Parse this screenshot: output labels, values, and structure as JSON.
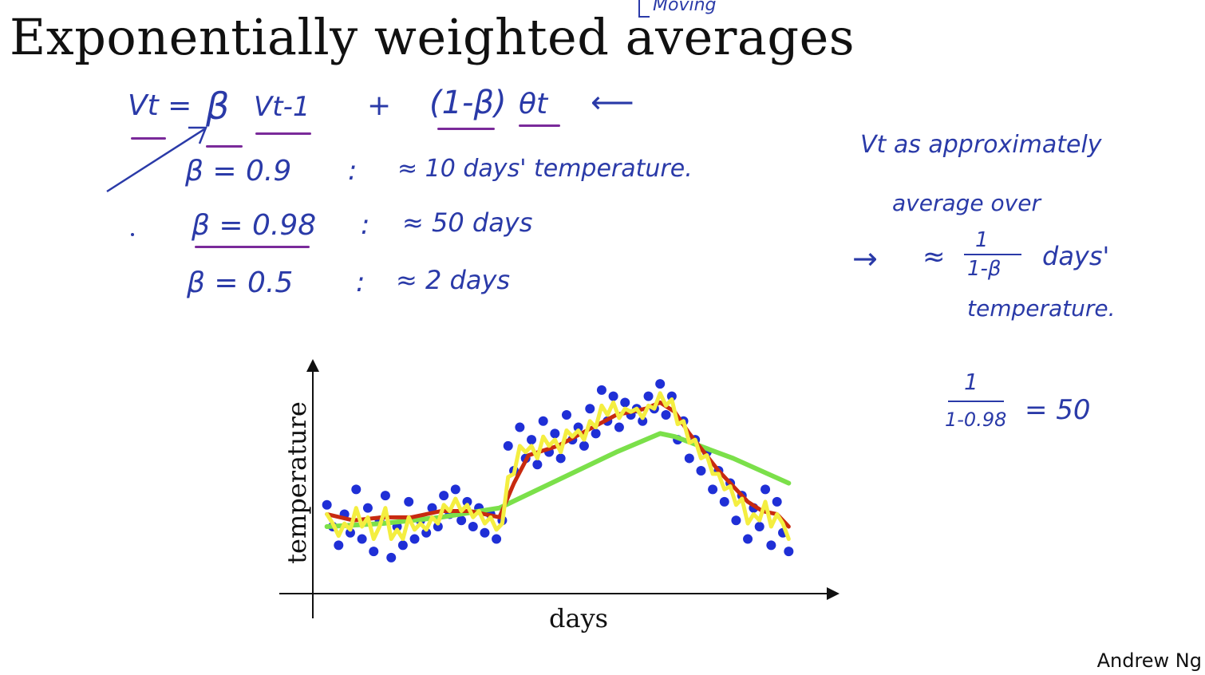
{
  "slide": {
    "title": "Exponentially weighted averages",
    "annotation": "Moving",
    "author": "Andrew Ng"
  },
  "formula": {
    "lhs": "Vt =",
    "beta": "β",
    "v_prev": "Vt-1",
    "plus": "+",
    "one_minus_beta": "(1-β)",
    "theta": "θt",
    "arrow": "⟵"
  },
  "examples": [
    {
      "beta": "β = 0.9",
      "sep": ":",
      "result": "≈ 10 days' temperature."
    },
    {
      "beta": "β = 0.98",
      "sep": ":",
      "result": "≈ 50 days"
    },
    {
      "beta": "β = 0.5",
      "sep": ":",
      "result": "≈ 2 days"
    }
  ],
  "note": {
    "line1": "Vt as approximately",
    "line2": "average over",
    "arrow": "→",
    "approx": "≈",
    "frac_num": "1",
    "frac_den": "1-β",
    "days": "days'",
    "line4": "temperature."
  },
  "calc": {
    "num": "1",
    "den": "1-0.98",
    "result": "= 50"
  },
  "chart_data": {
    "type": "scatter",
    "xlabel": "days",
    "ylabel": "temperature",
    "raw_points": [
      [
        1,
        25
      ],
      [
        3,
        18
      ],
      [
        5,
        12
      ],
      [
        7,
        22
      ],
      [
        9,
        16
      ],
      [
        11,
        30
      ],
      [
        13,
        14
      ],
      [
        15,
        24
      ],
      [
        17,
        10
      ],
      [
        19,
        20
      ],
      [
        21,
        28
      ],
      [
        23,
        8
      ],
      [
        25,
        18
      ],
      [
        27,
        12
      ],
      [
        29,
        26
      ],
      [
        31,
        14
      ],
      [
        33,
        20
      ],
      [
        35,
        16
      ],
      [
        37,
        24
      ],
      [
        39,
        18
      ],
      [
        41,
        28
      ],
      [
        43,
        22
      ],
      [
        45,
        30
      ],
      [
        47,
        20
      ],
      [
        49,
        26
      ],
      [
        51,
        18
      ],
      [
        53,
        24
      ],
      [
        55,
        16
      ],
      [
        57,
        22
      ],
      [
        59,
        14
      ],
      [
        61,
        20
      ],
      [
        63,
        44
      ],
      [
        65,
        36
      ],
      [
        67,
        50
      ],
      [
        69,
        40
      ],
      [
        71,
        46
      ],
      [
        73,
        38
      ],
      [
        75,
        52
      ],
      [
        77,
        42
      ],
      [
        79,
        48
      ],
      [
        81,
        40
      ],
      [
        83,
        54
      ],
      [
        85,
        46
      ],
      [
        87,
        50
      ],
      [
        89,
        44
      ],
      [
        91,
        56
      ],
      [
        93,
        48
      ],
      [
        95,
        62
      ],
      [
        97,
        52
      ],
      [
        99,
        60
      ],
      [
        101,
        50
      ],
      [
        103,
        58
      ],
      [
        105,
        54
      ],
      [
        107,
        56
      ],
      [
        109,
        52
      ],
      [
        111,
        60
      ],
      [
        113,
        56
      ],
      [
        115,
        64
      ],
      [
        117,
        54
      ],
      [
        119,
        60
      ],
      [
        121,
        46
      ],
      [
        123,
        52
      ],
      [
        125,
        40
      ],
      [
        127,
        46
      ],
      [
        129,
        36
      ],
      [
        131,
        42
      ],
      [
        133,
        30
      ],
      [
        135,
        36
      ],
      [
        137,
        26
      ],
      [
        139,
        32
      ],
      [
        141,
        20
      ],
      [
        143,
        28
      ],
      [
        145,
        14
      ],
      [
        147,
        24
      ],
      [
        149,
        18
      ],
      [
        151,
        30
      ],
      [
        153,
        12
      ],
      [
        155,
        26
      ],
      [
        157,
        16
      ],
      [
        159,
        10
      ]
    ],
    "ewa_beta_0_9": [
      [
        1,
        22
      ],
      [
        10,
        20
      ],
      [
        20,
        21
      ],
      [
        30,
        21
      ],
      [
        40,
        23
      ],
      [
        50,
        23
      ],
      [
        60,
        21
      ],
      [
        65,
        32
      ],
      [
        70,
        41
      ],
      [
        80,
        44
      ],
      [
        90,
        49
      ],
      [
        100,
        54
      ],
      [
        110,
        56
      ],
      [
        115,
        58
      ],
      [
        120,
        55
      ],
      [
        125,
        48
      ],
      [
        130,
        42
      ],
      [
        135,
        36
      ],
      [
        140,
        31
      ],
      [
        145,
        26
      ],
      [
        150,
        23
      ],
      [
        155,
        22
      ],
      [
        159,
        18
      ]
    ],
    "ewa_beta_0_98": [
      [
        1,
        18
      ],
      [
        20,
        19
      ],
      [
        40,
        21
      ],
      [
        60,
        24
      ],
      [
        80,
        33
      ],
      [
        100,
        42
      ],
      [
        115,
        48
      ],
      [
        120,
        47
      ],
      [
        140,
        40
      ],
      [
        159,
        32
      ]
    ],
    "ewa_beta_0_5": [
      [
        1,
        22
      ],
      [
        3,
        19
      ],
      [
        5,
        15
      ],
      [
        7,
        19
      ],
      [
        9,
        17
      ],
      [
        11,
        24
      ],
      [
        13,
        18
      ],
      [
        15,
        21
      ],
      [
        17,
        14
      ],
      [
        19,
        18
      ],
      [
        21,
        24
      ],
      [
        23,
        14
      ],
      [
        25,
        17
      ],
      [
        27,
        14
      ],
      [
        29,
        21
      ],
      [
        31,
        17
      ],
      [
        33,
        19
      ],
      [
        35,
        17
      ],
      [
        37,
        21
      ],
      [
        39,
        19
      ],
      [
        41,
        25
      ],
      [
        43,
        23
      ],
      [
        45,
        27
      ],
      [
        47,
        23
      ],
      [
        49,
        25
      ],
      [
        51,
        21
      ],
      [
        53,
        23
      ],
      [
        55,
        19
      ],
      [
        57,
        21
      ],
      [
        59,
        17
      ],
      [
        61,
        19
      ],
      [
        63,
        34
      ],
      [
        65,
        35
      ],
      [
        67,
        44
      ],
      [
        69,
        42
      ],
      [
        71,
        44
      ],
      [
        73,
        40
      ],
      [
        75,
        47
      ],
      [
        77,
        44
      ],
      [
        79,
        46
      ],
      [
        81,
        42
      ],
      [
        83,
        49
      ],
      [
        85,
        47
      ],
      [
        87,
        49
      ],
      [
        89,
        46
      ],
      [
        91,
        52
      ],
      [
        93,
        50
      ],
      [
        95,
        57
      ],
      [
        97,
        54
      ],
      [
        99,
        58
      ],
      [
        101,
        53
      ],
      [
        103,
        56
      ],
      [
        105,
        55
      ],
      [
        107,
        56
      ],
      [
        109,
        53
      ],
      [
        111,
        57
      ],
      [
        113,
        56
      ],
      [
        115,
        61
      ],
      [
        117,
        57
      ],
      [
        119,
        59
      ],
      [
        121,
        51
      ],
      [
        123,
        52
      ],
      [
        125,
        45
      ],
      [
        127,
        46
      ],
      [
        129,
        40
      ],
      [
        131,
        41
      ],
      [
        133,
        35
      ],
      [
        135,
        35
      ],
      [
        137,
        30
      ],
      [
        139,
        31
      ],
      [
        141,
        25
      ],
      [
        143,
        27
      ],
      [
        145,
        19
      ],
      [
        147,
        22
      ],
      [
        149,
        20
      ],
      [
        151,
        26
      ],
      [
        153,
        18
      ],
      [
        155,
        22
      ],
      [
        157,
        19
      ],
      [
        159,
        14
      ]
    ],
    "colors": {
      "raw": "#1f2fd6",
      "beta_0_9": "#c82a10",
      "beta_0_98": "#7be04a",
      "beta_0_5": "#f4ee40"
    }
  }
}
